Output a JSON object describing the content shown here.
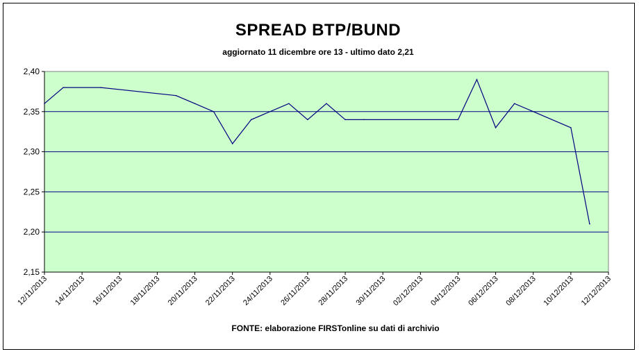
{
  "chart_data": {
    "type": "line",
    "title": "SPREAD BTP/BUND",
    "subtitle": "aggiornato 11 dicembre ore 13 - ultimo dato 2,21",
    "source": "FONTE: elaborazione FIRSTonline su dati di archivio",
    "xlabel": "",
    "ylabel": "",
    "ylim": [
      2.15,
      2.4
    ],
    "yticks": [
      "2,15",
      "2,20",
      "2,25",
      "2,30",
      "2,35",
      "2,40"
    ],
    "xticks": [
      "12/11/2013",
      "14/11/2013",
      "16/11/2013",
      "18/11/2013",
      "20/11/2013",
      "22/11/2013",
      "24/11/2013",
      "26/11/2013",
      "28/11/2013",
      "30/11/2013",
      "02/12/2013",
      "04/12/2013",
      "06/12/2013",
      "08/12/2013",
      "10/12/2013",
      "12/12/2013"
    ],
    "grid": "horizontal",
    "plot_background": "#ccffcc",
    "line_color": "#000080",
    "gridline_color": "#000080",
    "series": [
      {
        "x": [
          "2013-11-12",
          "2013-11-13",
          "2013-11-15",
          "2013-11-19",
          "2013-11-20",
          "2013-11-21",
          "2013-11-22",
          "2013-11-23",
          "2013-11-25",
          "2013-11-26",
          "2013-11-27",
          "2013-11-28",
          "2013-11-29",
          "2013-12-04",
          "2013-12-05",
          "2013-12-06",
          "2013-12-07",
          "2013-12-10",
          "2013-12-11"
        ],
        "values": [
          2.36,
          2.38,
          2.38,
          2.37,
          2.36,
          2.35,
          2.31,
          2.34,
          2.36,
          2.34,
          2.36,
          2.34,
          2.34,
          2.34,
          2.39,
          2.33,
          2.36,
          2.33,
          2.21
        ]
      }
    ]
  }
}
